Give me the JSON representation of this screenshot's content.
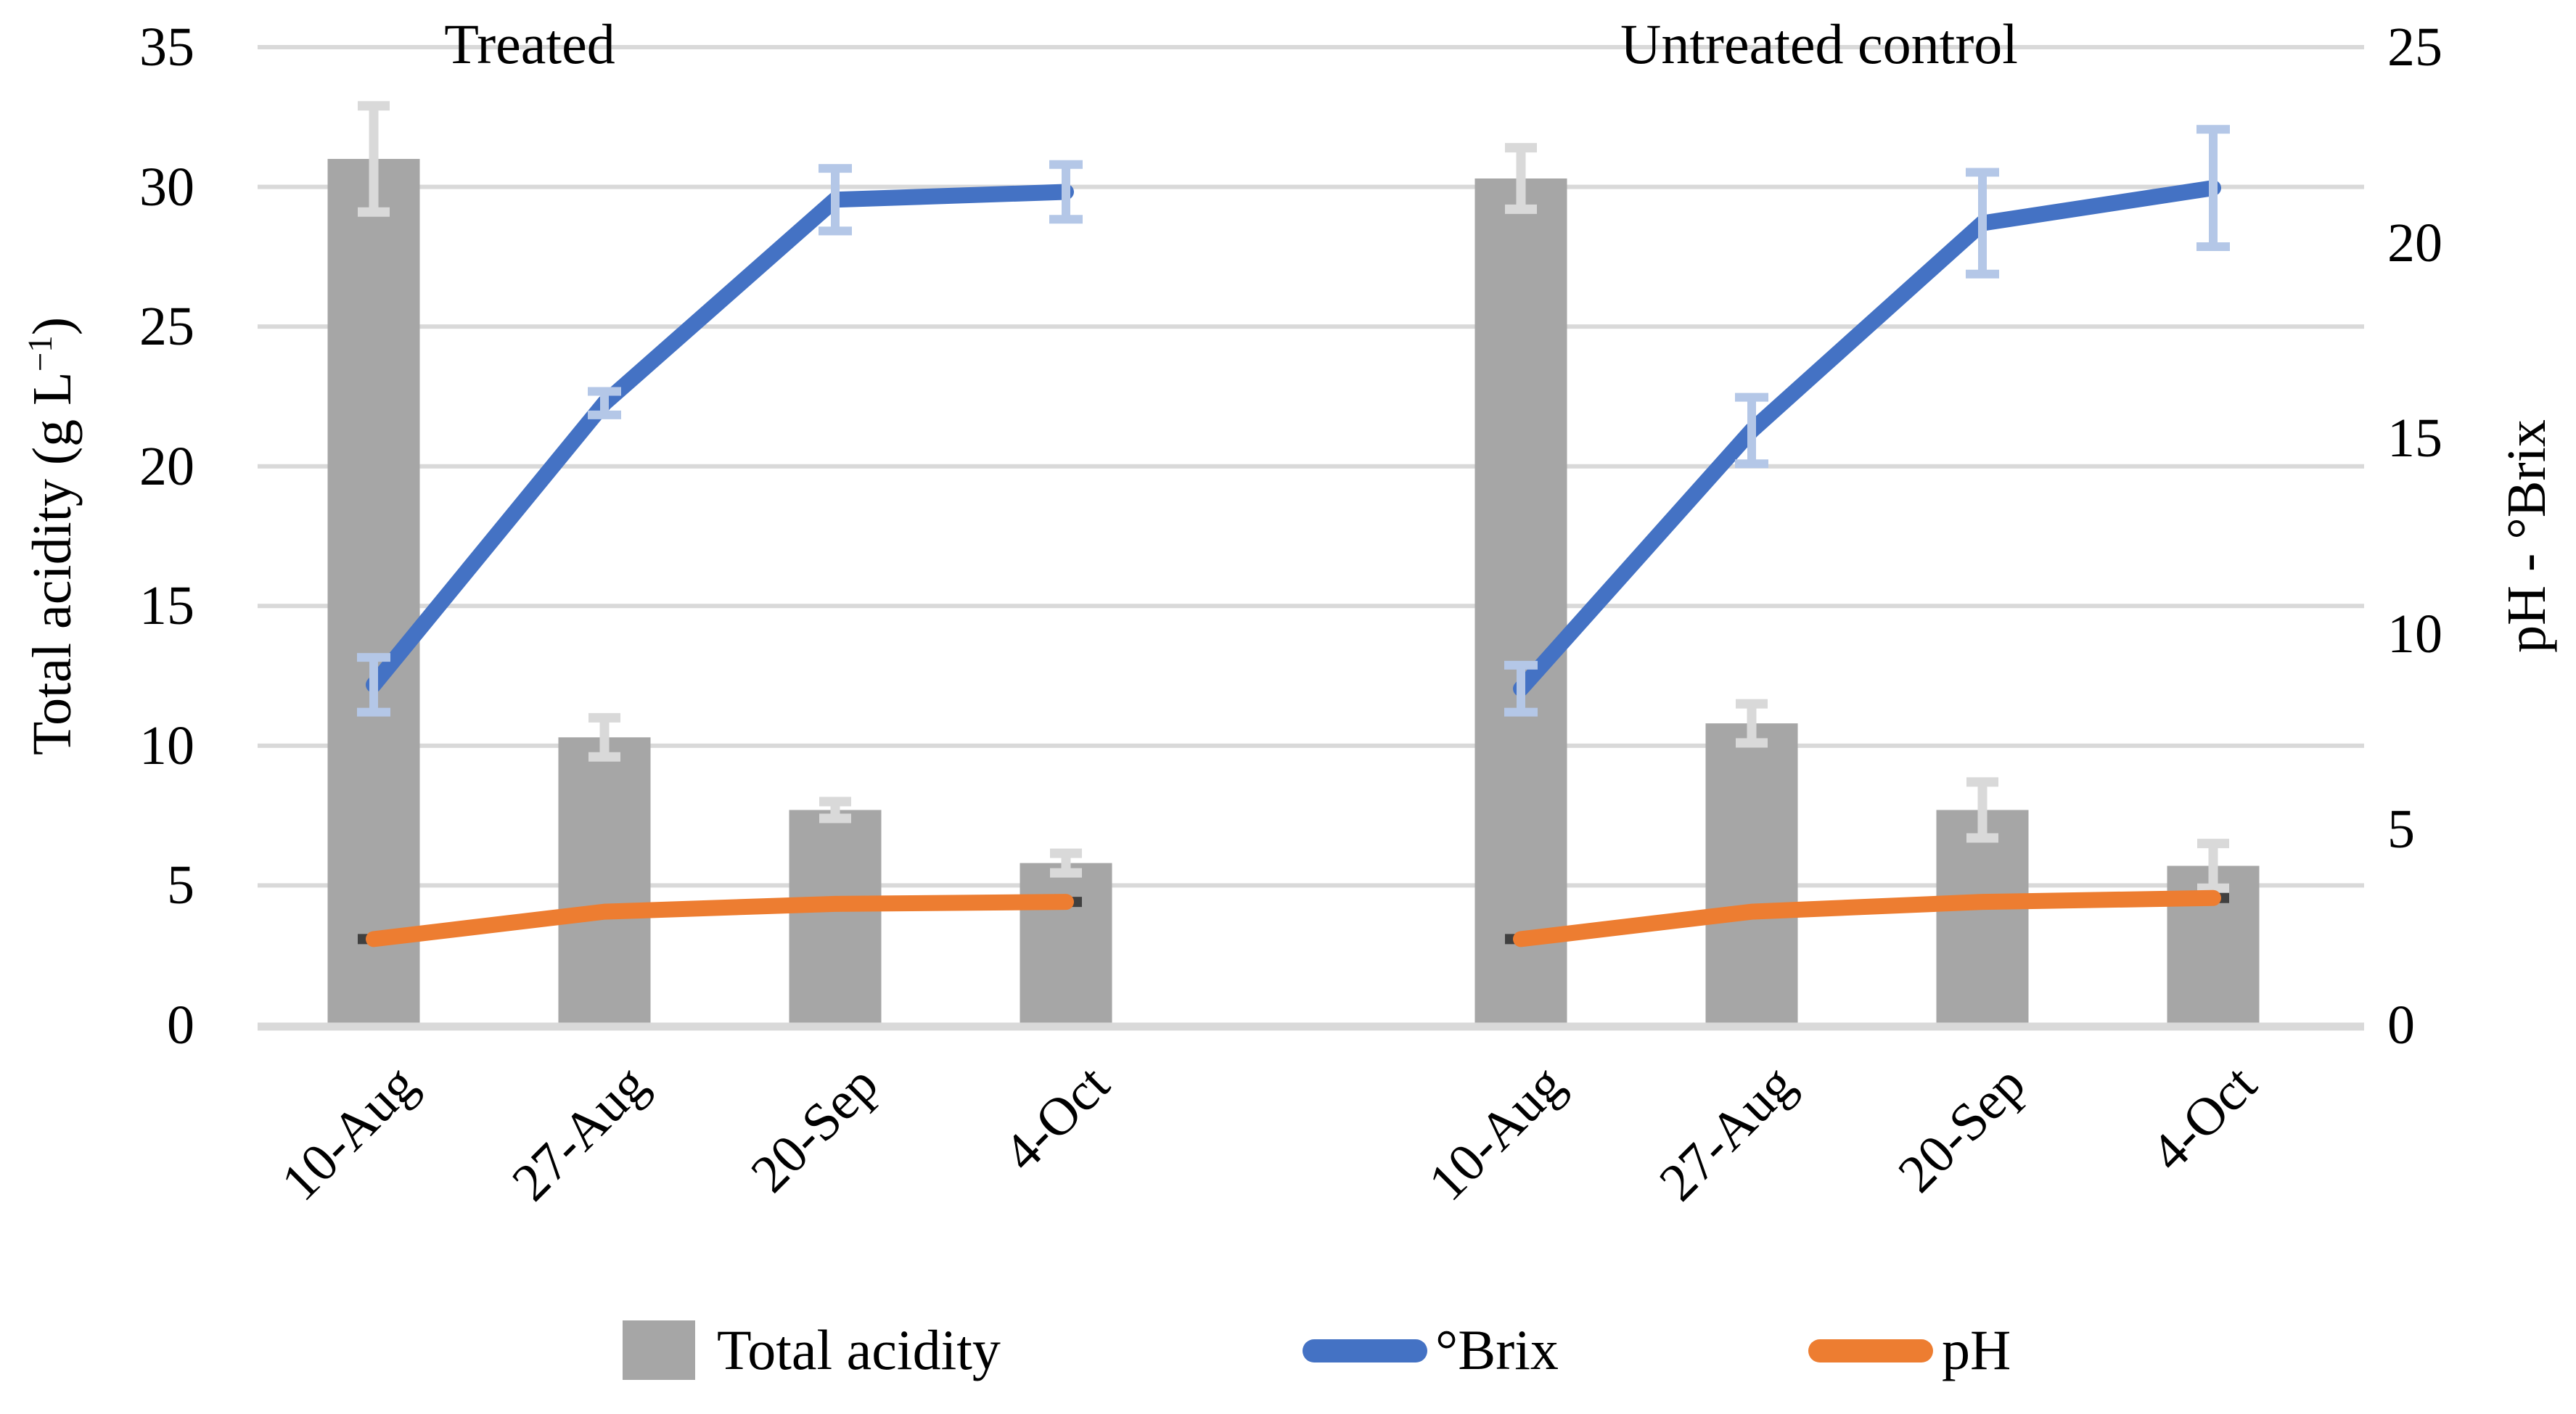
{
  "figure": {
    "panel_titles": [
      "Treated",
      "Untreated control"
    ],
    "left_axis": {
      "label_parts": {
        "main": "Total acidity  (g L",
        "sup": "−1",
        "close": ")"
      },
      "ticks": [
        "35",
        "30",
        "25",
        "20",
        "15",
        "10",
        "5",
        "0"
      ],
      "min": 0,
      "max": 35
    },
    "right_axis": {
      "label": "pH - °Brix",
      "ticks": [
        "25",
        "20",
        "15",
        "10",
        "5",
        "0"
      ],
      "min": 0,
      "max": 25
    },
    "categories": [
      "10-Aug",
      "27-Aug",
      "20-Sep",
      "4-Oct"
    ],
    "legend": {
      "items": [
        {
          "label": "Total acidity",
          "swatch": "bar",
          "color": "#A6A6A6"
        },
        {
          "label": "°Brix",
          "swatch": "line",
          "color": "#4472C4"
        },
        {
          "label": "pH",
          "swatch": "line",
          "color": "#ED7D31"
        }
      ],
      "position": "bottom"
    },
    "colors": {
      "bar": "#A6A6A6",
      "bar_error": "#D9D9D9",
      "gridline": "#D9D9D9",
      "brix_line": "#4472C4",
      "brix_error": "#B4C7E7",
      "ph_line": "#ED7D31",
      "ph_marker": "#404040",
      "text": "#000000",
      "background": "#FFFFFF"
    }
  },
  "chart_data": [
    {
      "type": "bar",
      "title": "Treated",
      "categories": [
        "10-Aug",
        "27-Aug",
        "20-Sep",
        "4-Oct"
      ],
      "series": [
        {
          "name": "Total acidity",
          "type": "bar",
          "axis": "left",
          "color": "#A6A6A6",
          "values": [
            31.0,
            10.3,
            7.7,
            5.8
          ],
          "errors": [
            1.9,
            0.7,
            0.3,
            0.35
          ]
        },
        {
          "name": "°Brix",
          "type": "line",
          "axis": "right",
          "color": "#4472C4",
          "values": [
            8.7,
            15.9,
            21.1,
            21.3
          ],
          "errors": [
            0.7,
            0.3,
            0.8,
            0.7
          ]
        },
        {
          "name": "pH",
          "type": "line",
          "axis": "right",
          "color": "#ED7D31",
          "marker": true,
          "values": [
            2.2,
            2.9,
            3.1,
            3.15
          ],
          "errors": [
            0,
            0,
            0,
            0
          ]
        }
      ],
      "ylabel_left": "Total acidity (g L−1)",
      "ylim_left": [
        0,
        35
      ],
      "ylabel_right": "pH - °Brix",
      "ylim_right": [
        0,
        25
      ],
      "grid": true,
      "legend_position": "bottom"
    },
    {
      "type": "bar",
      "title": "Untreated control",
      "categories": [
        "10-Aug",
        "27-Aug",
        "20-Sep",
        "4-Oct"
      ],
      "series": [
        {
          "name": "Total acidity",
          "type": "bar",
          "axis": "left",
          "color": "#A6A6A6",
          "values": [
            30.3,
            10.8,
            7.7,
            5.7
          ],
          "errors": [
            1.1,
            0.7,
            1.0,
            0.8
          ]
        },
        {
          "name": "°Brix",
          "type": "line",
          "axis": "right",
          "color": "#4472C4",
          "values": [
            8.6,
            15.2,
            20.5,
            21.4
          ],
          "errors": [
            0.6,
            0.85,
            1.3,
            1.5
          ]
        },
        {
          "name": "pH",
          "type": "line",
          "axis": "right",
          "color": "#ED7D31",
          "marker": true,
          "values": [
            2.2,
            2.9,
            3.15,
            3.25
          ],
          "errors": [
            0,
            0,
            0,
            0
          ]
        }
      ],
      "ylabel_left": "Total acidity (g L−1)",
      "ylim_left": [
        0,
        35
      ],
      "ylabel_right": "pH - °Brix",
      "ylim_right": [
        0,
        25
      ],
      "grid": true,
      "legend_position": "bottom"
    }
  ]
}
